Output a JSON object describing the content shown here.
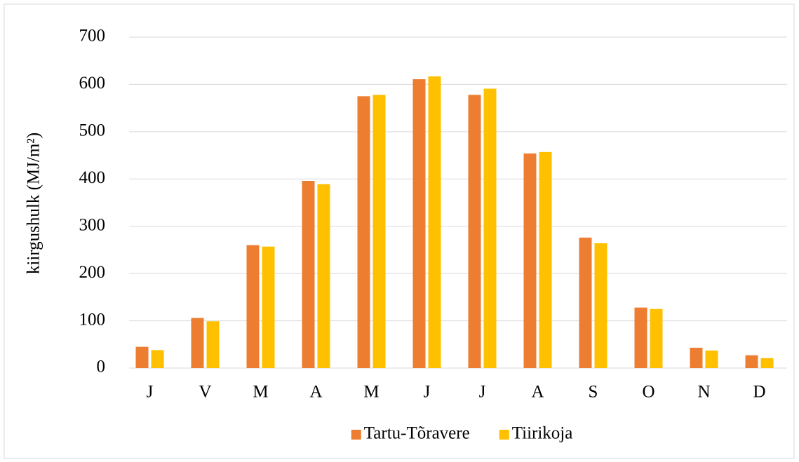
{
  "chart_data": {
    "type": "bar",
    "y_label": "kiirgushulk (MJ/m²)",
    "categories": [
      "J",
      "V",
      "M",
      "A",
      "M",
      "J",
      "J",
      "A",
      "S",
      "O",
      "N",
      "D"
    ],
    "series": [
      {
        "name": "Tartu-Tõravere",
        "color": "#ed7d31",
        "values": [
          45,
          106,
          260,
          396,
          575,
          611,
          578,
          454,
          276,
          128,
          43,
          27
        ]
      },
      {
        "name": "Tiirikoja",
        "color": "#ffc000",
        "values": [
          38,
          99,
          257,
          389,
          578,
          617,
          591,
          457,
          264,
          125,
          37,
          21
        ]
      }
    ],
    "ylim": [
      0,
      700
    ],
    "yticks": [
      0,
      100,
      200,
      300,
      400,
      500,
      600,
      700
    ],
    "grid": true,
    "legend": "bottom"
  }
}
